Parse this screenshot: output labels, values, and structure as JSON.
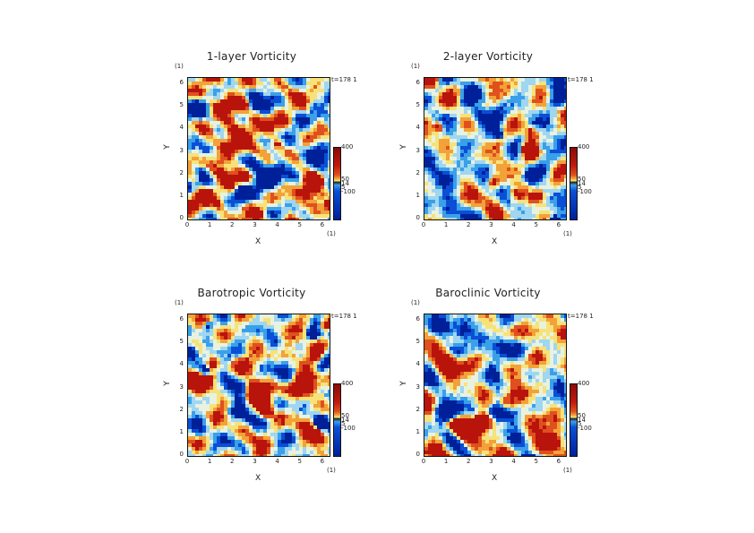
{
  "chart_data": [
    {
      "type": "heatmap",
      "title": "1-layer Vorticity",
      "xlabel": "X",
      "ylabel": "Y",
      "x_unit": "(1)",
      "y_unit": "(1)",
      "xlim": [
        0,
        6.283
      ],
      "ylim": [
        0,
        6.283
      ],
      "xticks": [
        "0",
        "1",
        "2",
        "3",
        "4",
        "5",
        "6"
      ],
      "yticks": [
        "0",
        "1",
        "2",
        "3",
        "4",
        "5",
        "6"
      ],
      "time_label": "t=178 1",
      "colorbar_ticks": [
        "400",
        "50",
        "14",
        "5",
        "-100"
      ],
      "seed": 11,
      "warm_bias": 0.35
    },
    {
      "type": "heatmap",
      "title": "2-layer Vorticity",
      "xlabel": "X",
      "ylabel": "Y",
      "x_unit": "(1)",
      "y_unit": "(1)",
      "xlim": [
        0,
        6.283
      ],
      "ylim": [
        0,
        6.283
      ],
      "xticks": [
        "0",
        "1",
        "2",
        "3",
        "4",
        "5",
        "6"
      ],
      "yticks": [
        "0",
        "1",
        "2",
        "3",
        "4",
        "5",
        "6"
      ],
      "time_label": "t=178 1",
      "colorbar_ticks": [
        "400",
        "50",
        "14",
        "5",
        "-100"
      ],
      "seed": 27,
      "warm_bias": -0.1
    },
    {
      "type": "heatmap",
      "title": "Barotropic Vorticity",
      "xlabel": "X",
      "ylabel": "Y",
      "x_unit": "(1)",
      "y_unit": "(1)",
      "xlim": [
        0,
        6.283
      ],
      "ylim": [
        0,
        6.283
      ],
      "xticks": [
        "0",
        "1",
        "2",
        "3",
        "4",
        "5",
        "6"
      ],
      "yticks": [
        "0",
        "1",
        "2",
        "3",
        "4",
        "5",
        "6"
      ],
      "time_label": "t=178 1",
      "colorbar_ticks": [
        "400",
        "50",
        "14",
        "5",
        "-100"
      ],
      "seed": 43,
      "warm_bias": 0.05
    },
    {
      "type": "heatmap",
      "title": "Baroclinic Vorticity",
      "xlabel": "X",
      "ylabel": "Y",
      "x_unit": "(1)",
      "y_unit": "(1)",
      "xlim": [
        0,
        6.283
      ],
      "ylim": [
        0,
        6.283
      ],
      "xticks": [
        "0",
        "1",
        "2",
        "3",
        "4",
        "5",
        "6"
      ],
      "yticks": [
        "0",
        "1",
        "2",
        "3",
        "4",
        "5",
        "6"
      ],
      "time_label": "t=178 1",
      "colorbar_ticks": [
        "400",
        "50",
        "14",
        "5",
        "-100"
      ],
      "seed": 59,
      "warm_bias": 0.1
    }
  ],
  "colors": {
    "colormap": [
      "#00209a",
      "#0a4fd6",
      "#3aa0e8",
      "#9fd6f2",
      "#e8f2e0",
      "#f7e27a",
      "#f2a238",
      "#e0501e",
      "#b8140c"
    ]
  }
}
